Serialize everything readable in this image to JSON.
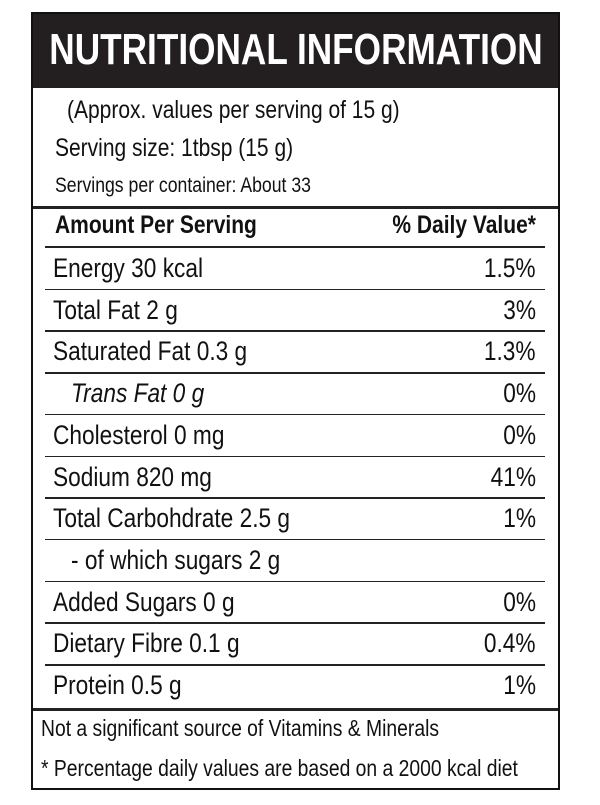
{
  "header": {
    "title": "NUTRITIONAL INFORMATION"
  },
  "serving": {
    "approx": "(Approx. values per serving of 15 g)",
    "size": "Serving size: 1tbsp (15 g)",
    "per_container": "Servings per container: About 33"
  },
  "table": {
    "columns": [
      "Amount Per Serving",
      "% Daily Value*"
    ],
    "rows": [
      {
        "name": "Energy 30 kcal",
        "dv": "1.5%"
      },
      {
        "name": "Total Fat 2 g",
        "dv": "3%"
      },
      {
        "name": "Saturated Fat 0.3 g",
        "dv": "1.3%"
      },
      {
        "name": "Trans Fat 0 g",
        "dv": "0%"
      },
      {
        "name": "Cholesterol 0 mg",
        "dv": "0%"
      },
      {
        "name": "Sodium 820 mg",
        "dv": "41%"
      },
      {
        "name": "Total Carbohdrate 2.5 g",
        "dv": "1%"
      },
      {
        "name": "- of which sugars 2 g"
      },
      {
        "name": "Added Sugars 0 g",
        "dv": "0%"
      },
      {
        "name": "Dietary Fibre 0.1 g",
        "dv": "0.4%"
      },
      {
        "name": "Protein 0.5 g",
        "dv": "1%"
      }
    ]
  },
  "footer": {
    "note": "Not a significant source of Vitamins & Minerals",
    "daily": "* Percentage daily values are based on a 2000 kcal diet"
  }
}
